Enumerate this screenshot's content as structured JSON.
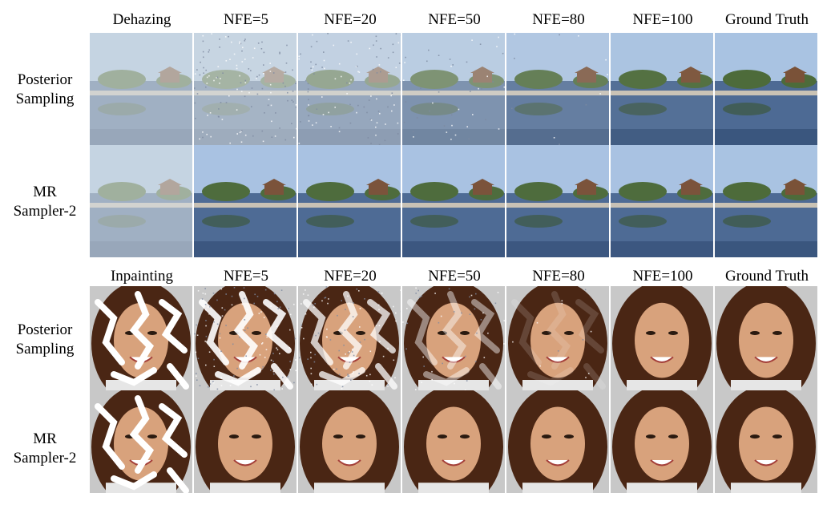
{
  "panels": [
    {
      "task": "dehazing",
      "columns": [
        "Dehazing",
        "NFE=5",
        "NFE=20",
        "NFE=50",
        "NFE=80",
        "NFE=100",
        "Ground Truth"
      ],
      "rows": [
        {
          "label_line1": "Posterior",
          "label_line2": "Sampling",
          "degradation": [
            0.85,
            0.9,
            0.75,
            0.5,
            0.25,
            0.08,
            0.0
          ],
          "noise": [
            0,
            0.6,
            0.45,
            0.2,
            0.05,
            0,
            0
          ]
        },
        {
          "label_line1": "MR",
          "label_line2": "Sampler-2",
          "degradation": [
            0.85,
            0.02,
            0.02,
            0.02,
            0.02,
            0.02,
            0.0
          ],
          "noise": [
            0,
            0,
            0,
            0,
            0,
            0,
            0
          ]
        }
      ]
    },
    {
      "task": "inpainting",
      "columns": [
        "Inpainting",
        "NFE=5",
        "NFE=20",
        "NFE=50",
        "NFE=80",
        "NFE=100",
        "Ground Truth"
      ],
      "rows": [
        {
          "label_line1": "Posterior",
          "label_line2": "Sampling",
          "degradation": [
            1.0,
            0.9,
            0.75,
            0.45,
            0.15,
            0.0,
            0.0
          ],
          "noise": [
            0,
            0.6,
            0.45,
            0.2,
            0.05,
            0,
            0
          ]
        },
        {
          "label_line1": "MR",
          "label_line2": "Sampler-2",
          "degradation": [
            1.0,
            0.0,
            0.0,
            0.0,
            0.0,
            0.0,
            0.0
          ],
          "noise": [
            0,
            0,
            0,
            0,
            0,
            0,
            0
          ]
        }
      ]
    }
  ],
  "colors": {
    "sky": "#a9c3e2",
    "water": "#4d6a94",
    "trees": "#4d6b3a",
    "house": "#7a5238",
    "haze": "#d9dfe3",
    "hair": "#4a2614",
    "skin": "#d8a27c",
    "mask": "#ffffff"
  }
}
